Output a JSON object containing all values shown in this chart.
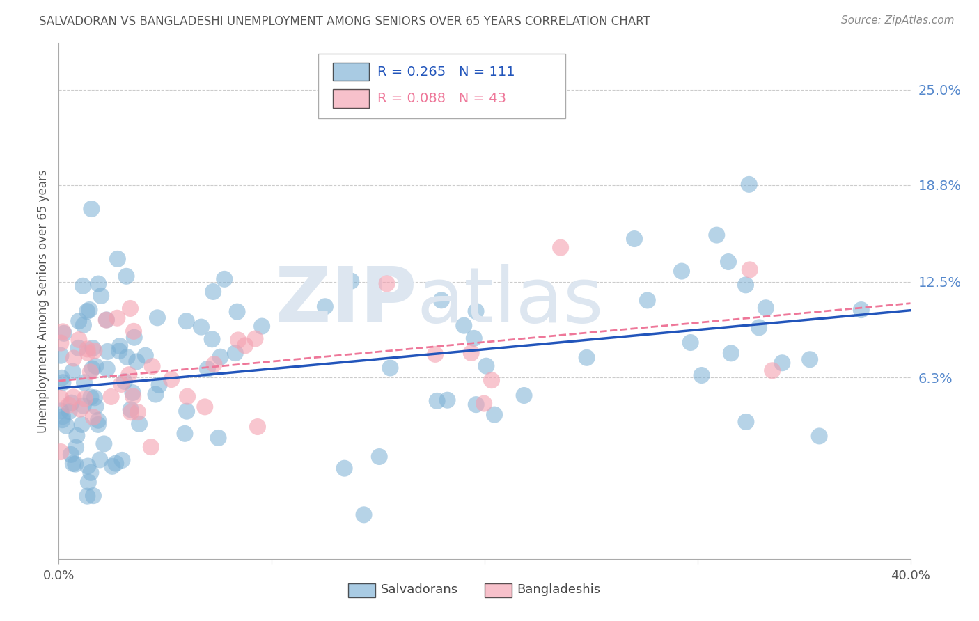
{
  "title": "SALVADORAN VS BANGLADESHI UNEMPLOYMENT AMONG SENIORS OVER 65 YEARS CORRELATION CHART",
  "source": "Source: ZipAtlas.com",
  "ylabel": "Unemployment Among Seniors over 65 years",
  "ytick_labels": [
    "25.0%",
    "18.8%",
    "12.5%",
    "6.3%"
  ],
  "ytick_values": [
    0.25,
    0.188,
    0.125,
    0.063
  ],
  "xlim": [
    0.0,
    0.4
  ],
  "ylim": [
    -0.055,
    0.28
  ],
  "salvadoran_color": "#7BAFD4",
  "bangladeshi_color": "#F4A0B0",
  "salvadoran_line_color": "#2255BB",
  "bangladeshi_line_color": "#EE7799",
  "salvadoran_R": 0.265,
  "salvadoran_N": 111,
  "bangladeshi_R": 0.088,
  "bangladeshi_N": 43,
  "background_color": "#ffffff",
  "grid_color": "#cccccc",
  "watermark_color": "#dde6f0",
  "legend_label_salvadoran": "Salvadorans",
  "legend_label_bangladeshi": "Bangladeshis",
  "title_color": "#555555",
  "source_color": "#888888",
  "ytick_color": "#5588CC",
  "axis_color": "#aaaaaa",
  "ylabel_color": "#555555"
}
